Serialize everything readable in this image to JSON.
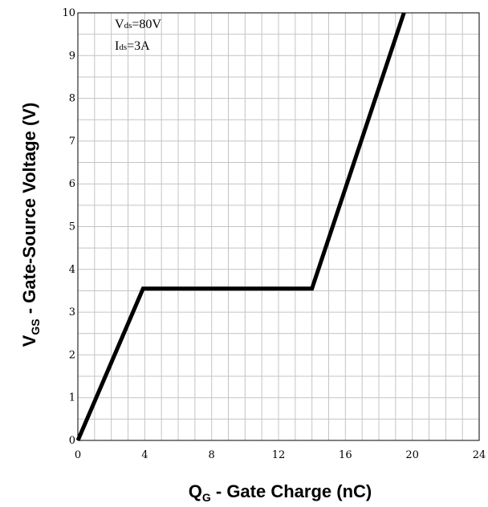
{
  "chart_data": {
    "type": "line",
    "xlabel": {
      "main": "Q",
      "sub": "G",
      "rest": " - Gate Charge (nC)"
    },
    "ylabel": {
      "main": "V",
      "sub": "GS",
      "rest": " - Gate-Source Voltage (V)"
    },
    "xlim": [
      0,
      24
    ],
    "ylim": [
      0,
      10
    ],
    "x_ticks": [
      0,
      4,
      8,
      12,
      16,
      20,
      24
    ],
    "y_ticks": [
      0,
      1,
      2,
      3,
      4,
      5,
      6,
      7,
      8,
      9,
      10
    ],
    "grid": true,
    "annotations": [
      {
        "main": "V",
        "sub": "ds",
        "rest": "=80V"
      },
      {
        "main": "I",
        "sub": "ds",
        "rest": "=3A"
      }
    ],
    "series": [
      {
        "x": [
          0,
          3.9,
          14.0,
          19.5
        ],
        "y": [
          0,
          3.55,
          3.55,
          10
        ]
      }
    ]
  }
}
